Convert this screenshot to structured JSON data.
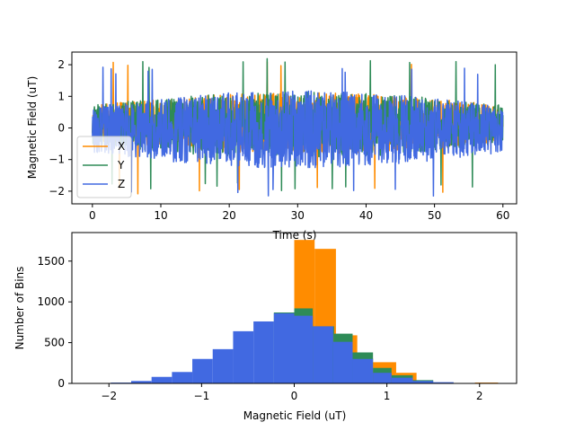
{
  "colors": {
    "X": "#ff8c00",
    "Y": "#2e8b57",
    "Z": "#4169e1"
  },
  "chart_data": [
    {
      "type": "line",
      "xlabel": "Time (s)",
      "ylabel": "Magnetic Field (uT)",
      "xlim": [
        -3,
        62
      ],
      "ylim": [
        -2.4,
        2.4
      ],
      "xticks": [
        0,
        10,
        20,
        30,
        40,
        50,
        60
      ],
      "yticks": [
        -2,
        -1,
        0,
        1,
        2
      ],
      "legend": {
        "placement": "lower-left",
        "entries": [
          "X",
          "Y",
          "Z"
        ]
      },
      "series": [
        {
          "name": "X",
          "color": "#ff8c00",
          "amplitude": 0.55,
          "offset": 0.15,
          "extreme_range": [
            -2.1,
            2.1
          ]
        },
        {
          "name": "Y",
          "color": "#2e8b57",
          "amplitude": 0.6,
          "offset": 0.1,
          "extreme_range": [
            -2.0,
            2.2
          ]
        },
        {
          "name": "Z",
          "color": "#4169e1",
          "amplitude": 0.7,
          "offset": -0.05,
          "extreme_range": [
            -2.2,
            1.95
          ]
        }
      ]
    },
    {
      "type": "histogram",
      "xlabel": "Magnetic Field (uT)",
      "ylabel": "Number of Bins",
      "xlim": [
        -2.4,
        2.4
      ],
      "ylim": [
        0,
        1850
      ],
      "xticks": [
        -2,
        -1,
        0,
        1,
        2
      ],
      "yticks": [
        0,
        500,
        1000,
        1500
      ],
      "series": [
        {
          "name": "X",
          "color": "#ff8c00",
          "bins": [
            {
              "x0": 0.0,
              "x1": 0.22,
              "count": 1760
            },
            {
              "x0": 0.22,
              "x1": 0.45,
              "count": 1650
            },
            {
              "x0": 0.45,
              "x1": 0.68,
              "count": 590
            },
            {
              "x0": 0.68,
              "x1": 0.85,
              "count": 310
            },
            {
              "x0": 0.85,
              "x1": 1.1,
              "count": 260
            },
            {
              "x0": 1.1,
              "x1": 1.32,
              "count": 130
            },
            {
              "x0": 1.95,
              "x1": 2.2,
              "count": 10
            }
          ]
        },
        {
          "name": "Y",
          "color": "#2e8b57",
          "bins": [
            {
              "x0": -0.22,
              "x1": 0.0,
              "count": 870
            },
            {
              "x0": 0.0,
              "x1": 0.2,
              "count": 920
            },
            {
              "x0": 0.2,
              "x1": 0.43,
              "count": 700
            },
            {
              "x0": 0.43,
              "x1": 0.63,
              "count": 610
            },
            {
              "x0": 0.63,
              "x1": 0.85,
              "count": 380
            },
            {
              "x0": 0.85,
              "x1": 1.05,
              "count": 190
            },
            {
              "x0": 1.05,
              "x1": 1.28,
              "count": 100
            },
            {
              "x0": 1.28,
              "x1": 1.5,
              "count": 40
            }
          ]
        },
        {
          "name": "Z",
          "color": "#4169e1",
          "bins": [
            {
              "x0": -2.2,
              "x1": -1.98,
              "count": 5
            },
            {
              "x0": -1.98,
              "x1": -1.76,
              "count": 10
            },
            {
              "x0": -1.76,
              "x1": -1.54,
              "count": 30
            },
            {
              "x0": -1.54,
              "x1": -1.32,
              "count": 80
            },
            {
              "x0": -1.32,
              "x1": -1.1,
              "count": 140
            },
            {
              "x0": -1.1,
              "x1": -0.88,
              "count": 300
            },
            {
              "x0": -0.88,
              "x1": -0.66,
              "count": 420
            },
            {
              "x0": -0.66,
              "x1": -0.44,
              "count": 640
            },
            {
              "x0": -0.44,
              "x1": -0.22,
              "count": 760
            },
            {
              "x0": -0.22,
              "x1": 0.0,
              "count": 860
            },
            {
              "x0": 0.0,
              "x1": 0.2,
              "count": 830
            },
            {
              "x0": 0.2,
              "x1": 0.42,
              "count": 700
            },
            {
              "x0": 0.42,
              "x1": 0.63,
              "count": 510
            },
            {
              "x0": 0.63,
              "x1": 0.85,
              "count": 300
            },
            {
              "x0": 0.85,
              "x1": 1.05,
              "count": 130
            },
            {
              "x0": 1.05,
              "x1": 1.28,
              "count": 70
            },
            {
              "x0": 1.28,
              "x1": 1.5,
              "count": 30
            },
            {
              "x0": 1.5,
              "x1": 1.72,
              "count": 15
            },
            {
              "x0": 1.72,
              "x1": 1.95,
              "count": 5
            }
          ]
        }
      ]
    }
  ]
}
